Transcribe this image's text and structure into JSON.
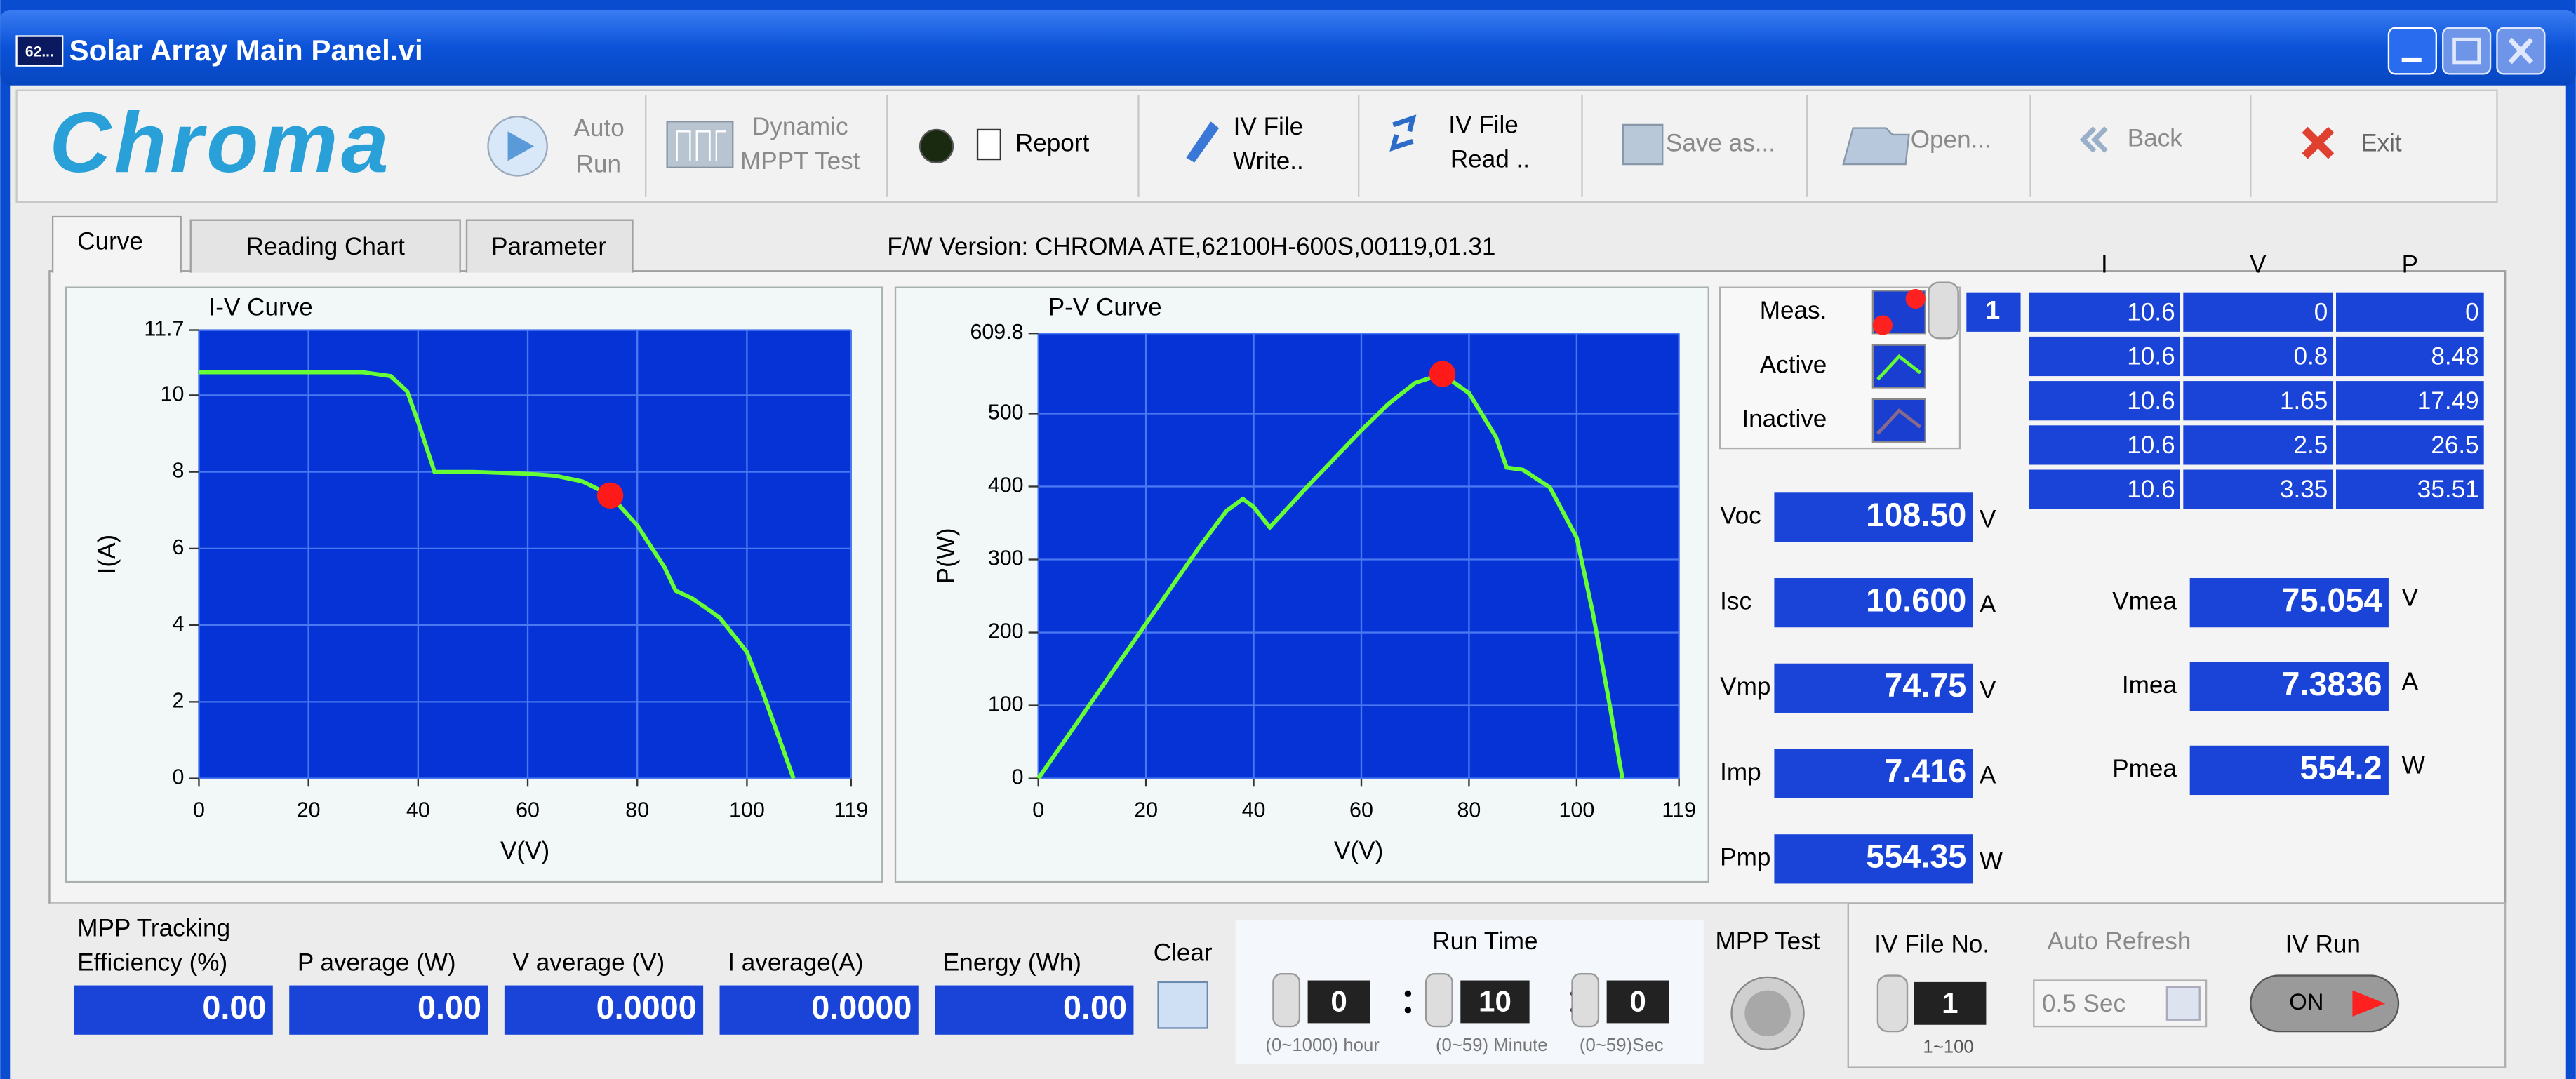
{
  "window": {
    "title": "Solar Array Main Panel.vi",
    "icon": "62..."
  },
  "toolbar": {
    "logo": "Chroma",
    "auto_run": [
      "Auto",
      "Run"
    ],
    "dynamic_mppt": [
      "Dynamic",
      "MPPT Test"
    ],
    "report": "Report",
    "iv_file_write": [
      "IV File",
      "Write.."
    ],
    "iv_file_read": [
      "IV File",
      "Read .."
    ],
    "save_as": "Save as...",
    "open": "Open...",
    "back": "Back",
    "exit": "Exit"
  },
  "tabs": [
    "Curve",
    "Reading Chart",
    "Parameter"
  ],
  "fw_version": "F/W Version: CHROMA ATE,62100H-600S,00119,01.31",
  "chart_data": [
    {
      "type": "line",
      "title": "I-V Curve",
      "x_label": "V(V)",
      "y_label": "I(A)",
      "xlim": [
        0,
        119
      ],
      "ylim": [
        0,
        11.7
      ],
      "xticks": [
        0,
        20,
        40,
        60,
        80,
        100,
        119
      ],
      "yticks": [
        0,
        2,
        4,
        6,
        8,
        10,
        11.7
      ],
      "grid": true,
      "color": "#66ff33",
      "marker_color": "#ff1a1a",
      "x": [
        0,
        10,
        20,
        30,
        35,
        38,
        40,
        43,
        50,
        60,
        65,
        70,
        75,
        80,
        85,
        87,
        90,
        95,
        100,
        103,
        106,
        108.5
      ],
      "values": [
        10.6,
        10.6,
        10.6,
        10.6,
        10.5,
        10.1,
        9.3,
        8.0,
        8.0,
        7.95,
        7.9,
        7.75,
        7.4,
        6.6,
        5.5,
        4.9,
        4.7,
        4.2,
        3.3,
        2.2,
        1.0,
        0
      ],
      "marker": {
        "x": 75.054,
        "y": 7.3836
      }
    },
    {
      "type": "line",
      "title": "P-V Curve",
      "x_label": "V(V)",
      "y_label": "P(W)",
      "xlim": [
        0,
        119
      ],
      "ylim": [
        0,
        609.8
      ],
      "xticks": [
        0,
        20,
        40,
        60,
        80,
        100,
        119
      ],
      "yticks": [
        0,
        100,
        200,
        300,
        400,
        500,
        609.8
      ],
      "grid": true,
      "color": "#66ff33",
      "marker_color": "#ff1a1a",
      "x": [
        0,
        10,
        20,
        30,
        35,
        38,
        40,
        43,
        50,
        60,
        65,
        70,
        75,
        80,
        85,
        87,
        90,
        95,
        100,
        103,
        106,
        108.5
      ],
      "values": [
        0,
        106,
        212,
        318,
        367,
        383,
        372,
        344,
        400,
        477,
        513,
        542,
        554,
        528,
        468,
        426,
        423,
        399,
        330,
        227,
        106,
        0
      ],
      "marker": {
        "x": 75.054,
        "y": 554.2
      }
    }
  ],
  "legend": {
    "items": [
      "Meas.",
      "Active",
      "Inactive"
    ],
    "index": "1"
  },
  "table": {
    "header": [
      "I",
      "V",
      "P"
    ],
    "rows": [
      [
        10.6,
        0,
        0
      ],
      [
        10.6,
        0.8,
        8.48
      ],
      [
        10.6,
        1.65,
        17.49
      ],
      [
        10.6,
        2.5,
        26.5
      ],
      [
        10.6,
        3.35,
        35.51
      ]
    ]
  },
  "readouts": [
    {
      "label": "Voc",
      "value": "108.50",
      "unit": "V"
    },
    {
      "label": "Isc",
      "value": "10.600",
      "unit": "A"
    },
    {
      "label": "Vmp",
      "value": "74.75",
      "unit": "V"
    },
    {
      "label": "Imp",
      "value": "7.416",
      "unit": "A"
    },
    {
      "label": "Pmp",
      "value": "554.35",
      "unit": "W"
    }
  ],
  "measurements": [
    {
      "label": "Vmea",
      "value": "75.054",
      "unit": "V"
    },
    {
      "label": "Imea",
      "value": "7.3836",
      "unit": "A"
    },
    {
      "label": "Pmea",
      "value": "554.2",
      "unit": "W"
    }
  ],
  "bottom": {
    "stats": [
      {
        "label": [
          "MPP Tracking",
          "Efficiency (%)"
        ],
        "value": "0.00"
      },
      {
        "label": [
          "P average  (W)"
        ],
        "value": "0.00"
      },
      {
        "label": [
          "V average (V)"
        ],
        "value": "0.0000"
      },
      {
        "label": [
          "I average(A)"
        ],
        "value": "0.0000"
      },
      {
        "label": [
          "Energy  (Wh)"
        ],
        "value": "0.00"
      }
    ],
    "clear": "Clear",
    "run_time": {
      "label": "Run Time",
      "fields": [
        {
          "value": "0",
          "range": "(0~1000) hour"
        },
        {
          "value": "10",
          "range": "(0~59) Minute"
        },
        {
          "value": "0",
          "range": "(0~59)Sec"
        }
      ]
    },
    "mpp_test": "MPP Test",
    "iv_file_no": {
      "label": "IV File No.",
      "value": "1",
      "range": "1~100"
    },
    "auto_refresh": {
      "label": "Auto Refresh",
      "value": "0.5 Sec"
    },
    "iv_run": {
      "label": "IV Run",
      "state": "ON"
    }
  }
}
